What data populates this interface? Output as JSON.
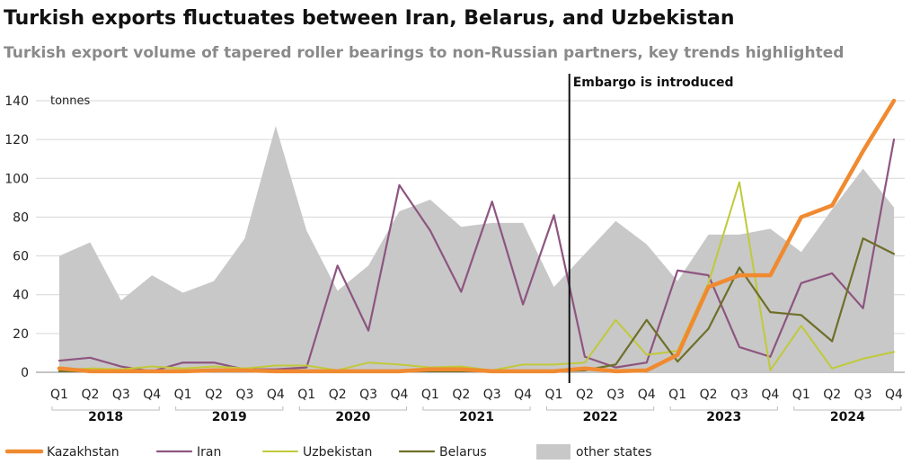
{
  "chart_data": {
    "type": "line",
    "title": "Turkish exports fluctuates between Iran, Belarus, and Uzbekistan",
    "subtitle": "Turkish export volume of tapered roller bearings to non-Russian partners, key trends highlighted",
    "ylabel": "tonnes",
    "ylim": [
      0,
      140
    ],
    "yticks": [
      0,
      20,
      40,
      60,
      80,
      100,
      120,
      140
    ],
    "grid": true,
    "legend_position": "bottom",
    "categories": [
      "Q1",
      "Q2",
      "Q3",
      "Q4",
      "Q1",
      "Q2",
      "Q3",
      "Q4",
      "Q1",
      "Q2",
      "Q3",
      "Q4",
      "Q1",
      "Q2",
      "Q3",
      "Q4",
      "Q1",
      "Q2",
      "Q3",
      "Q4",
      "Q1",
      "Q2",
      "Q3",
      "Q4",
      "Q1",
      "Q2",
      "Q3",
      "Q4"
    ],
    "years": [
      {
        "label": "2018",
        "start": 0,
        "end": 3
      },
      {
        "label": "2019",
        "start": 4,
        "end": 7
      },
      {
        "label": "2020",
        "start": 8,
        "end": 11
      },
      {
        "label": "2021",
        "start": 12,
        "end": 15
      },
      {
        "label": "2022",
        "start": 16,
        "end": 19
      },
      {
        "label": "2023",
        "start": 20,
        "end": 23
      },
      {
        "label": "2024",
        "start": 24,
        "end": 27
      }
    ],
    "annotation": {
      "text": "Embargo is introduced",
      "at": 16.5
    },
    "series": [
      {
        "name": "other states",
        "kind": "area",
        "color": "#c8c8c8",
        "values": [
          60,
          67,
          37,
          50,
          41,
          47,
          69,
          127,
          73,
          42,
          55,
          83,
          89,
          75,
          77,
          77,
          44,
          61,
          78,
          66,
          47,
          71,
          71,
          74,
          62,
          84,
          105,
          85
        ]
      },
      {
        "name": "Iran",
        "kind": "line",
        "color": "#8d5580",
        "width": 2.2,
        "values": [
          6,
          7.5,
          3,
          0.5,
          5,
          5,
          1.5,
          1.5,
          2.5,
          55,
          21.5,
          96.5,
          73,
          41.5,
          88,
          35,
          81,
          8,
          2.5,
          5,
          52.5,
          50,
          13,
          8,
          46,
          51,
          33,
          120
        ]
      },
      {
        "name": "Uzbekistan",
        "kind": "line",
        "color": "#c0c93a",
        "width": 2,
        "values": [
          1,
          2,
          1.5,
          3,
          2,
          3,
          2,
          3.5,
          3.5,
          1,
          5,
          4,
          2.5,
          3,
          1,
          4,
          4,
          5,
          27,
          9,
          11,
          46,
          98,
          1,
          24,
          2,
          7,
          10.5
        ]
      },
      {
        "name": "Belarus",
        "kind": "line",
        "color": "#6f6f2a",
        "width": 2.2,
        "values": [
          0.5,
          0.5,
          0.5,
          0.5,
          0.5,
          0.5,
          0.5,
          0.5,
          0.5,
          0.5,
          0.5,
          0.5,
          0.5,
          0.5,
          0.5,
          0.5,
          0.5,
          1,
          4,
          27,
          5.5,
          22.5,
          54,
          31,
          29.5,
          16,
          69,
          61
        ]
      },
      {
        "name": "Kazakhstan",
        "kind": "line",
        "color": "#f08a30",
        "width": 4.5,
        "values": [
          2,
          0.5,
          0.5,
          0.5,
          0.5,
          1,
          1,
          0.5,
          0.5,
          0.5,
          0.5,
          0.5,
          1.5,
          1.5,
          0.5,
          0.5,
          0.5,
          2,
          0.5,
          1,
          9,
          44,
          50,
          50,
          80,
          86,
          114,
          140
        ]
      }
    ],
    "legend_order": [
      "Kazakhstan",
      "Iran",
      "Uzbekistan",
      "Belarus",
      "other states"
    ]
  }
}
